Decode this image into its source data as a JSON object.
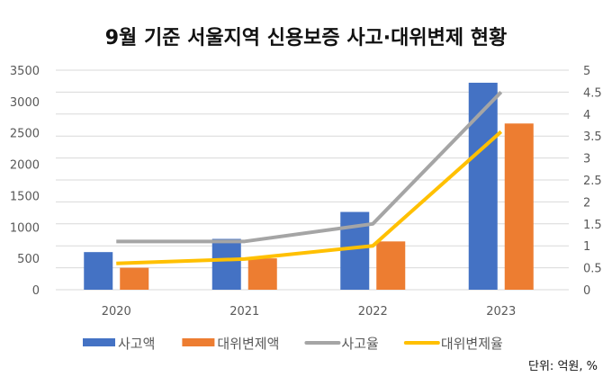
{
  "chart_data": {
    "type": "bar",
    "title": "9월 기준 서울지역 신용보증 사고·대위변제 현황",
    "unit_note": "단위: 억원, %",
    "categories": [
      "2020",
      "2021",
      "2022",
      "2023"
    ],
    "y_left": {
      "range": [
        0,
        3500
      ],
      "ticks": [
        "0",
        "500",
        "1000",
        "1500",
        "2000",
        "2500",
        "3000",
        "3500"
      ]
    },
    "y_right": {
      "range": [
        0,
        5
      ],
      "ticks": [
        "0",
        "0.5",
        "1",
        "1.5",
        "2",
        "2.5",
        "3",
        "3.5",
        "4",
        "4.5",
        "5"
      ]
    },
    "grid": true,
    "legend_position": "bottom",
    "series": [
      {
        "name": "사고액",
        "type": "bar",
        "axis": "left",
        "color": "#4472C4",
        "values": [
          600,
          810,
          1240,
          3300
        ]
      },
      {
        "name": "대위변제액",
        "type": "bar",
        "axis": "left",
        "color": "#ED7D31",
        "values": [
          350,
          500,
          770,
          2650
        ]
      },
      {
        "name": "사고율",
        "type": "line",
        "axis": "right",
        "color": "#A5A5A5",
        "values": [
          1.1,
          1.1,
          1.5,
          4.5
        ]
      },
      {
        "name": "대위변제율",
        "type": "line",
        "axis": "right",
        "color": "#FFC000",
        "values": [
          0.6,
          0.7,
          1.0,
          3.6
        ]
      }
    ]
  }
}
